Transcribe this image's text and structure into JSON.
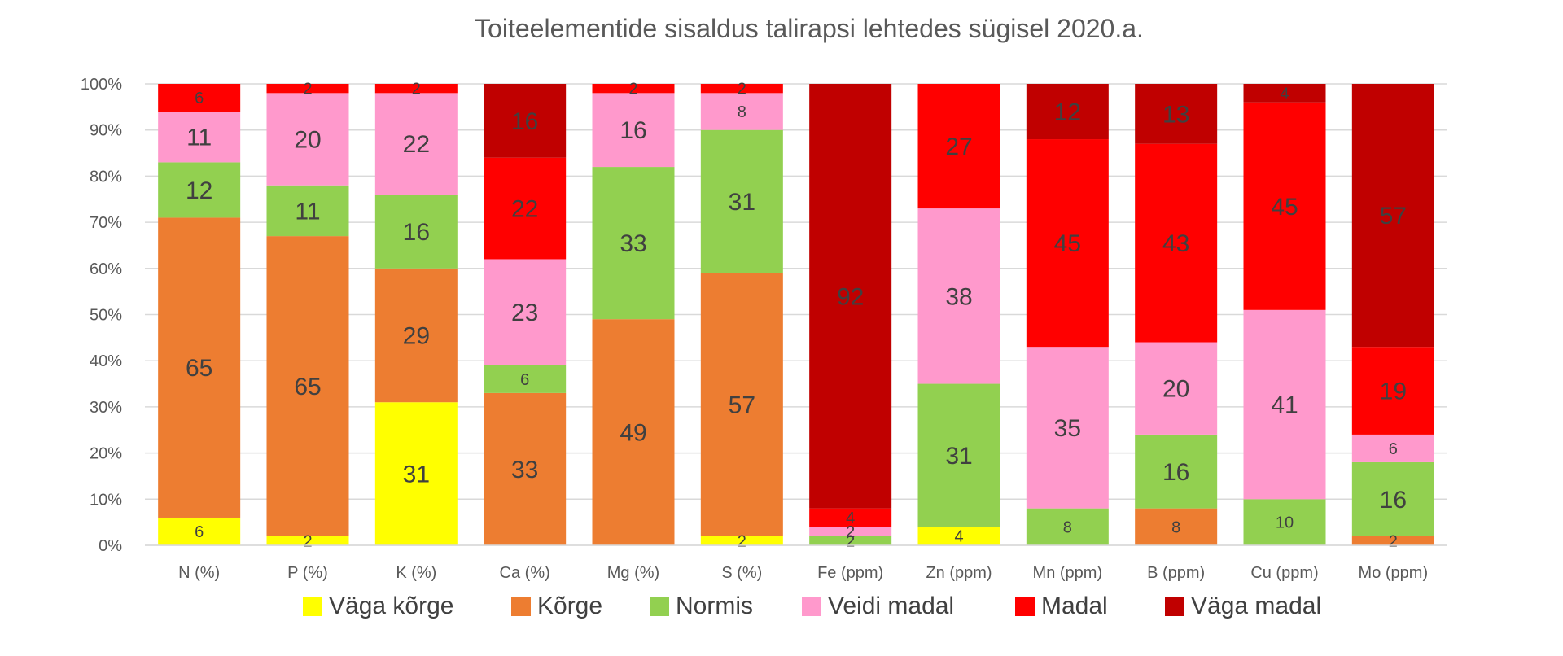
{
  "chart_data": {
    "type": "bar",
    "stacked": true,
    "normalized": true,
    "title": "Toiteelementide sisaldus talirapsi lehtedes sügisel 2020.a.",
    "xlabel": "",
    "ylabel": "",
    "ylim": [
      0,
      100
    ],
    "yticks": [
      "0%",
      "10%",
      "20%",
      "30%",
      "40%",
      "50%",
      "60%",
      "70%",
      "80%",
      "90%",
      "100%"
    ],
    "grid": true,
    "legend_position": "bottom",
    "categories": [
      "N (%)",
      "P (%)",
      "K (%)",
      "Ca (%)",
      "Mg (%)",
      "S (%)",
      "Fe (ppm)",
      "Zn (ppm)",
      "Mn (ppm)",
      "B (ppm)",
      "Cu (ppm)",
      "Mo (ppm)"
    ],
    "series": [
      {
        "name": "Väga kõrge",
        "color": "#FFFF00",
        "values": [
          6,
          2,
          31,
          0,
          0,
          2,
          0,
          4,
          0,
          0,
          0,
          0
        ]
      },
      {
        "name": "Kõrge",
        "color": "#ED7D31",
        "values": [
          65,
          65,
          29,
          33,
          49,
          57,
          0,
          0,
          0,
          8,
          0,
          2
        ]
      },
      {
        "name": "Normis",
        "color": "#92D050",
        "values": [
          12,
          11,
          16,
          6,
          33,
          31,
          2,
          31,
          8,
          16,
          10,
          16
        ]
      },
      {
        "name": "Veidi madal",
        "color": "#FF99CC",
        "values": [
          11,
          20,
          22,
          23,
          16,
          8,
          2,
          38,
          35,
          20,
          41,
          6
        ]
      },
      {
        "name": "Madal",
        "color": "#FF0000",
        "values": [
          6,
          2,
          2,
          22,
          2,
          2,
          4,
          27,
          45,
          43,
          45,
          19
        ]
      },
      {
        "name": "Väga madal",
        "color": "#C00000",
        "values": [
          0,
          0,
          0,
          16,
          0,
          0,
          92,
          0,
          12,
          13,
          4,
          57
        ]
      }
    ],
    "data_labels": [
      [
        "6",
        "65",
        "12",
        "11",
        "6",
        null
      ],
      [
        "2",
        "65",
        "11",
        "20",
        "2",
        null
      ],
      [
        "31",
        "29",
        "16",
        "22",
        "2",
        null
      ],
      [
        null,
        "33",
        "6",
        "23",
        "22",
        "16"
      ],
      [
        null,
        "49",
        "33",
        "16",
        "2",
        null
      ],
      [
        "2",
        "57",
        "31",
        "8",
        "2",
        null
      ],
      [
        null,
        null,
        "2",
        "2",
        "4",
        "92"
      ],
      [
        "4",
        null,
        "31",
        "38",
        "27",
        null
      ],
      [
        null,
        null,
        "8",
        "35",
        "45",
        "12"
      ],
      [
        null,
        "8",
        "16",
        "20",
        "43",
        "13"
      ],
      [
        null,
        null,
        "10",
        "41",
        "45",
        "4"
      ],
      [
        null,
        "2",
        "16",
        "6",
        "19",
        "57"
      ]
    ]
  }
}
